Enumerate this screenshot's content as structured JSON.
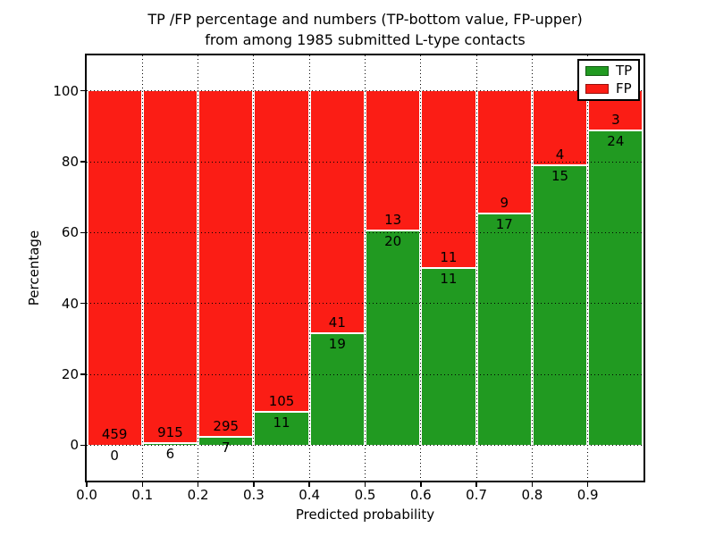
{
  "title": {
    "line1": "TP /FP percentage and numbers (TP-bottom value, FP-upper)",
    "line2": "from among 1985 submitted L-type contacts"
  },
  "chart_data": {
    "type": "bar",
    "stacked": true,
    "normalized": "each bin scaled to 100%",
    "title": "TP /FP percentage and numbers (TP-bottom value, FP-upper)\nfrom among 1985 submitted L-type contacts",
    "xlabel": "Predicted probability",
    "ylabel": "Percentage",
    "total_contacts": 1985,
    "bin_edges": [
      0.0,
      0.1,
      0.2,
      0.3,
      0.4,
      0.5,
      0.6,
      0.7,
      0.8,
      0.9,
      1.0
    ],
    "series": [
      {
        "name": "TP",
        "position": "bottom",
        "color": "#219a21",
        "counts": [
          0,
          6,
          7,
          11,
          19,
          20,
          11,
          17,
          15,
          24
        ]
      },
      {
        "name": "FP",
        "position": "top",
        "color": "#fb1d15",
        "counts": [
          459,
          915,
          295,
          105,
          41,
          13,
          11,
          9,
          4,
          3
        ]
      }
    ],
    "tp_percent_of_bin": [
      0.0,
      0.65,
      2.32,
      9.48,
      31.67,
      60.61,
      50.0,
      65.38,
      78.95,
      88.89
    ],
    "annotation_note": "upper number on each bar = FP count, lower number = TP count",
    "yticks": [
      0,
      20,
      40,
      60,
      80,
      100
    ],
    "xtick_labels": [
      "0.0",
      "0.1",
      "0.2",
      "0.3",
      "0.4",
      "0.5",
      "0.6",
      "0.7",
      "0.8",
      "0.9"
    ],
    "ylim": [
      -10,
      110
    ],
    "xlim": [
      0.0,
      1.0
    ],
    "grid": "dotted, both axes, drawn over bars",
    "legend": {
      "position": "upper right",
      "entries": [
        {
          "label": "TP",
          "color": "#219a21"
        },
        {
          "label": "FP",
          "color": "#fb1d15"
        }
      ]
    }
  }
}
